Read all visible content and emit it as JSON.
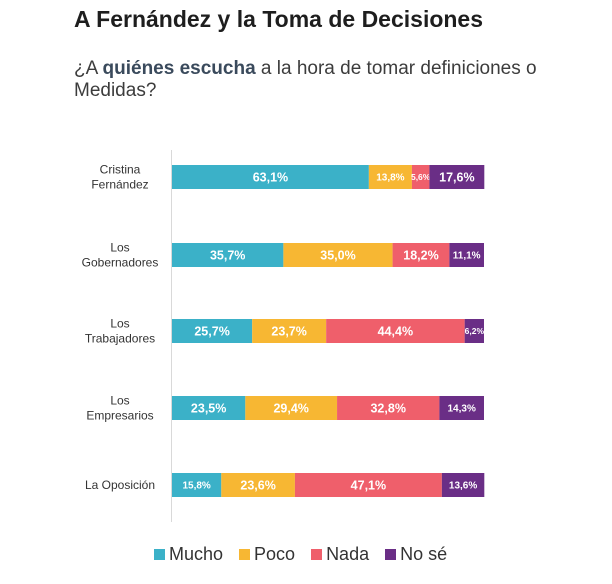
{
  "header": {
    "title": "A Fernández y la Toma de Decisiones",
    "subtitle_pre": "¿A ",
    "subtitle_bold": "quiénes escucha",
    "subtitle_post": " a la hora de tomar definiciones o Medidas?"
  },
  "chart_data": {
    "type": "bar",
    "orientation": "horizontal",
    "stacked": true,
    "title": "A Fernández y la Toma de Decisiones",
    "subtitle": "¿A quiénes escucha a la hora de tomar definiciones o Medidas?",
    "xlim": [
      0,
      100
    ],
    "grid": false,
    "legend_position": "bottom",
    "categories": [
      [
        "Cristina",
        "Fernández"
      ],
      [
        "Los",
        "Gobernadores"
      ],
      [
        "Los",
        "Trabajadores"
      ],
      [
        "Los",
        "Empresarios"
      ],
      [
        "La Oposición"
      ]
    ],
    "series": [
      {
        "name": "Mucho",
        "color": "#3bb1c8",
        "values": [
          63.1,
          35.7,
          25.7,
          23.5,
          15.8
        ],
        "labels": [
          "63,1%",
          "35,7%",
          "25,7%",
          "23,5%",
          "15,8%"
        ]
      },
      {
        "name": "Poco",
        "color": "#f7b733",
        "values": [
          13.8,
          35.0,
          23.7,
          29.4,
          23.6
        ],
        "labels": [
          "13,8%",
          "35,0%",
          "23,7%",
          "29,4%",
          "23,6%"
        ]
      },
      {
        "name": "Nada",
        "color": "#ef5f6b",
        "values": [
          5.6,
          18.2,
          44.4,
          32.8,
          47.1
        ],
        "labels": [
          "5,6%",
          "18,2%",
          "44,4%",
          "32,8%",
          "47,1%"
        ]
      },
      {
        "name": "No sé",
        "color": "#6a2e86",
        "values": [
          17.6,
          11.1,
          6.2,
          14.3,
          13.6
        ],
        "labels": [
          "17,6%",
          "11,1%",
          "6,2%",
          "14,3%",
          "13,6%"
        ]
      }
    ]
  }
}
